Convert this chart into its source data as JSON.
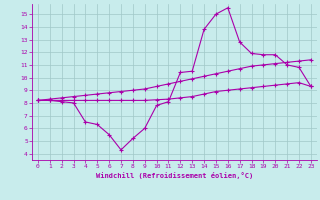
{
  "xlabel": "Windchill (Refroidissement éolien,°C)",
  "bg_color": "#c8ecec",
  "grid_color": "#a0c8c8",
  "line_color": "#aa00aa",
  "xlim": [
    -0.5,
    23.5
  ],
  "ylim": [
    3.5,
    15.8
  ],
  "xticks": [
    0,
    1,
    2,
    3,
    4,
    5,
    6,
    7,
    8,
    9,
    10,
    11,
    12,
    13,
    14,
    15,
    16,
    17,
    18,
    19,
    20,
    21,
    22,
    23
  ],
  "yticks": [
    4,
    5,
    6,
    7,
    8,
    9,
    10,
    11,
    12,
    13,
    14,
    15
  ],
  "line1_x": [
    0,
    1,
    2,
    3,
    4,
    5,
    6,
    7,
    8,
    9,
    10,
    11,
    12,
    13,
    14,
    15,
    16,
    17,
    18,
    19,
    20,
    21,
    22,
    23
  ],
  "line1_y": [
    8.2,
    8.2,
    8.1,
    8.0,
    6.5,
    6.3,
    5.5,
    4.3,
    5.2,
    6.0,
    7.8,
    8.1,
    10.4,
    10.5,
    13.8,
    15.0,
    15.5,
    12.8,
    11.9,
    11.8,
    11.8,
    11.0,
    10.8,
    9.3
  ],
  "line2_x": [
    0,
    1,
    2,
    3,
    4,
    5,
    6,
    7,
    8,
    9,
    10,
    11,
    12,
    13,
    14,
    15,
    16,
    17,
    18,
    19,
    20,
    21,
    22,
    23
  ],
  "line2_y": [
    8.2,
    8.3,
    8.4,
    8.5,
    8.6,
    8.7,
    8.8,
    8.9,
    9.0,
    9.1,
    9.3,
    9.5,
    9.7,
    9.9,
    10.1,
    10.3,
    10.5,
    10.7,
    10.9,
    11.0,
    11.1,
    11.2,
    11.3,
    11.4
  ],
  "line3_x": [
    0,
    1,
    2,
    3,
    4,
    5,
    6,
    7,
    8,
    9,
    10,
    11,
    12,
    13,
    14,
    15,
    16,
    17,
    18,
    19,
    20,
    21,
    22,
    23
  ],
  "line3_y": [
    8.2,
    8.2,
    8.2,
    8.2,
    8.2,
    8.2,
    8.2,
    8.2,
    8.2,
    8.2,
    8.25,
    8.3,
    8.4,
    8.5,
    8.7,
    8.9,
    9.0,
    9.1,
    9.2,
    9.3,
    9.4,
    9.5,
    9.6,
    9.3
  ]
}
